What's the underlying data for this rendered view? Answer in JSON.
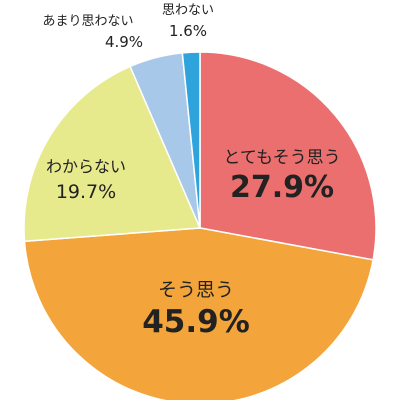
{
  "chart_data": {
    "type": "pie",
    "title": "",
    "start_angle_deg": 0,
    "direction": "clockwise",
    "slices": [
      {
        "label": "とてもそう思う",
        "value": 27.9,
        "value_label": "27.9%",
        "color": "#ec6f6f"
      },
      {
        "label": "そう思う",
        "value": 45.9,
        "value_label": "45.9%",
        "color": "#f3a43a"
      },
      {
        "label": "わからない",
        "value": 19.7,
        "value_label": "19.7%",
        "color": "#e6e98c"
      },
      {
        "label": "あまり思わない",
        "value": 4.9,
        "value_label": "4.9%",
        "color": "#a8c8ea"
      },
      {
        "label": "思わない",
        "value": 1.6,
        "value_label": "1.6%",
        "color": "#2fa3dc"
      }
    ]
  }
}
